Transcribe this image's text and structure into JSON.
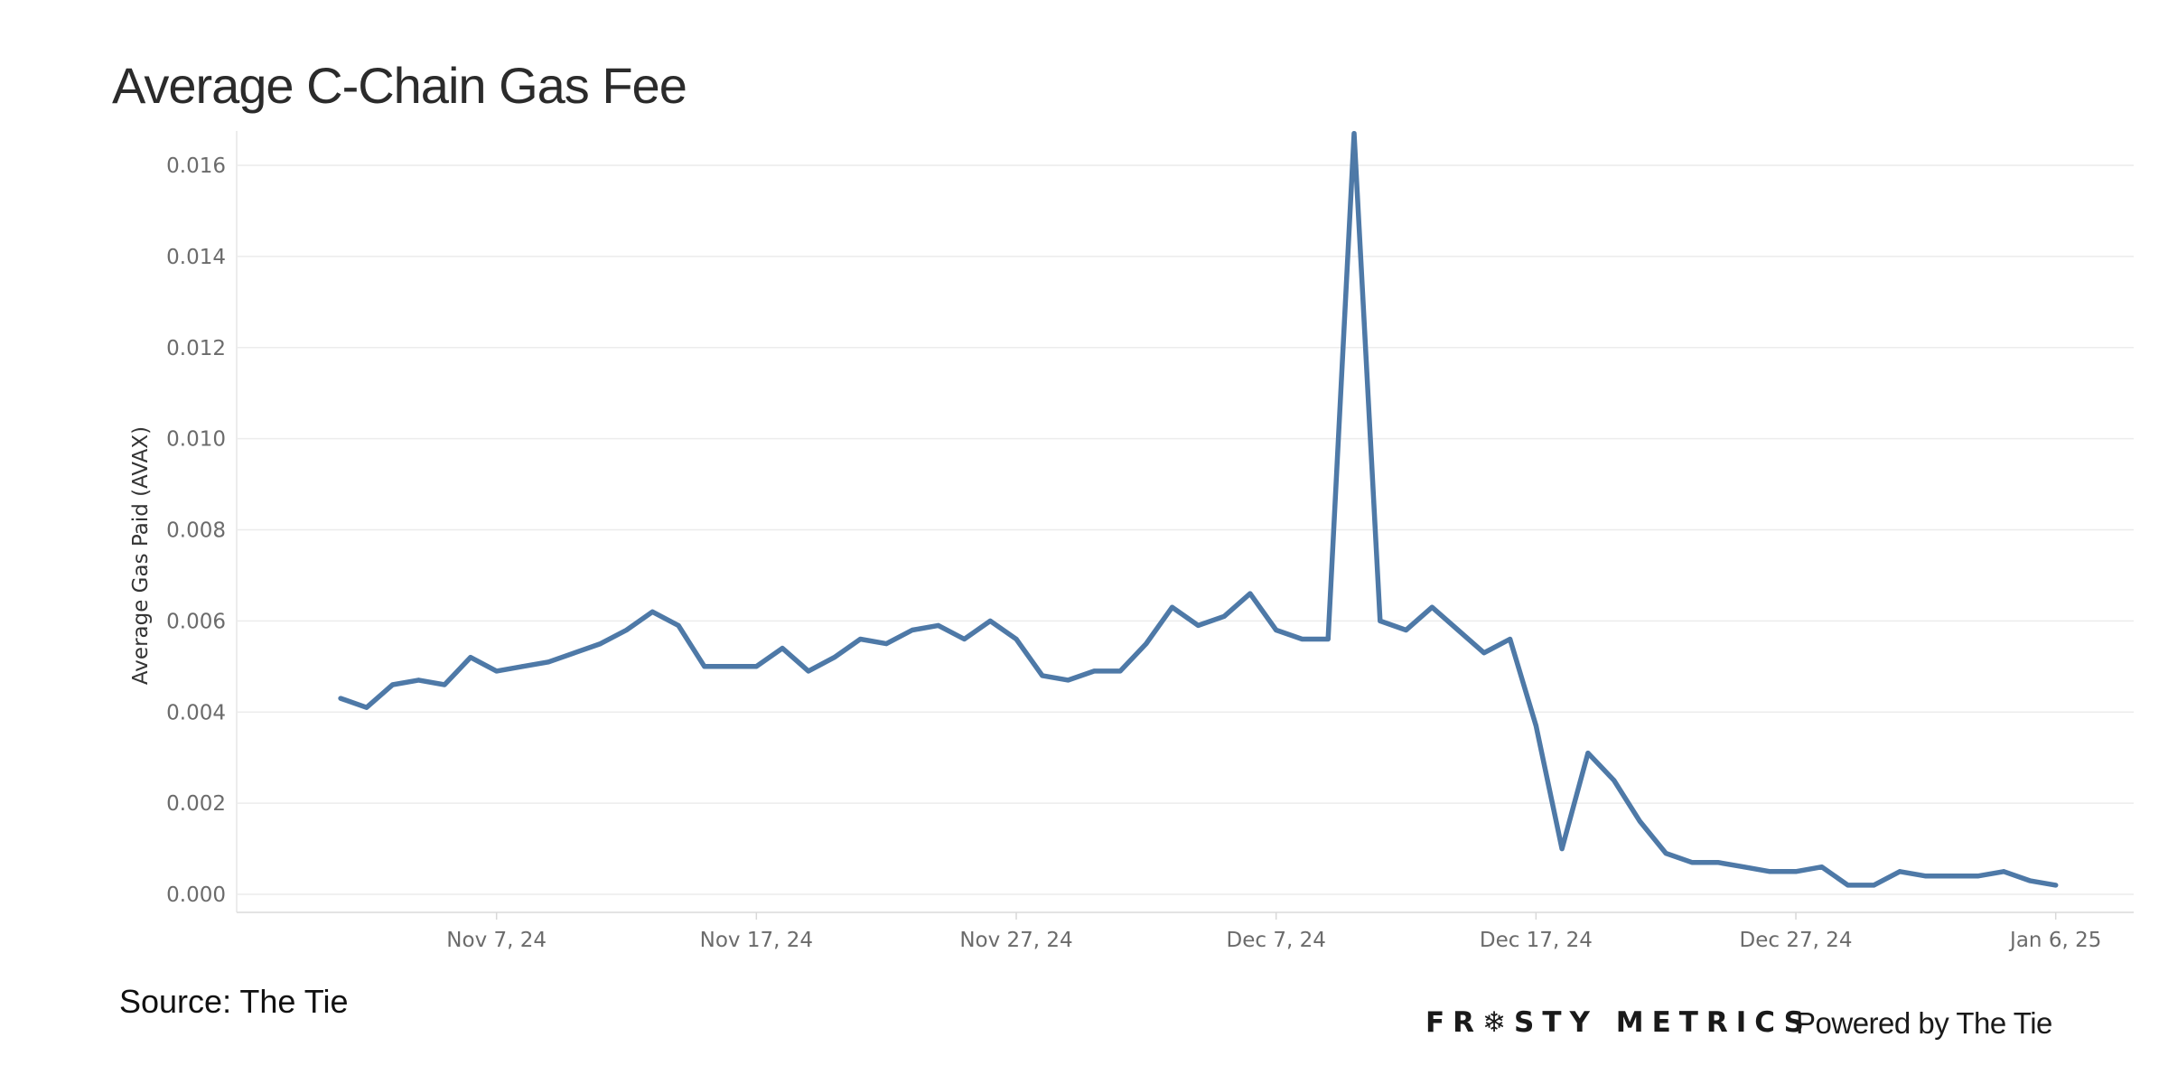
{
  "title": "Average C-Chain Gas Fee",
  "source": "Source: The Tie",
  "brand": "FR❄STY METRICS",
  "powered": "Powered by The Tie",
  "colors": {
    "line": "#4e79a7",
    "grid": "#ececec",
    "tick": "#6b6b6b"
  },
  "chart_data": {
    "type": "line",
    "title": "Average C-Chain Gas Fee",
    "xlabel": "",
    "ylabel": "Average Gas Paid (AVAX)",
    "ylim": [
      0,
      0.017
    ],
    "yticks": [
      0.0,
      0.002,
      0.004,
      0.006,
      0.008,
      0.01,
      0.012,
      0.014,
      0.016
    ],
    "ytick_labels": [
      "0.000",
      "0.002",
      "0.004",
      "0.006",
      "0.008",
      "0.010",
      "0.012",
      "0.014",
      "0.016"
    ],
    "xlim": [
      "2024-10-28",
      "2025-01-09"
    ],
    "xticks": [
      "2024-11-07",
      "2024-11-17",
      "2024-11-27",
      "2024-12-07",
      "2024-12-17",
      "2024-12-27",
      "2025-01-06"
    ],
    "xtick_labels": [
      "Nov 7, 24",
      "Nov 17, 24",
      "Nov 27, 24",
      "Dec 7, 24",
      "Dec 17, 24",
      "Dec 27, 24",
      "Jan 6, 25"
    ],
    "grid": true,
    "legend": "none",
    "series": [
      {
        "x": [
          "2024-11-01",
          "2024-11-02",
          "2024-11-03",
          "2024-11-04",
          "2024-11-05",
          "2024-11-06",
          "2024-11-07",
          "2024-11-08",
          "2024-11-09",
          "2024-11-10",
          "2024-11-11",
          "2024-11-12",
          "2024-11-13",
          "2024-11-14",
          "2024-11-15",
          "2024-11-16",
          "2024-11-17",
          "2024-11-18",
          "2024-11-19",
          "2024-11-20",
          "2024-11-21",
          "2024-11-22",
          "2024-11-23",
          "2024-11-24",
          "2024-11-25",
          "2024-11-26",
          "2024-11-27",
          "2024-11-28",
          "2024-11-29",
          "2024-11-30",
          "2024-12-01",
          "2024-12-02",
          "2024-12-03",
          "2024-12-04",
          "2024-12-05",
          "2024-12-06",
          "2024-12-07",
          "2024-12-08",
          "2024-12-09",
          "2024-12-10",
          "2024-12-11",
          "2024-12-12",
          "2024-12-13",
          "2024-12-14",
          "2024-12-15",
          "2024-12-16",
          "2024-12-17",
          "2024-12-18",
          "2024-12-19",
          "2024-12-20",
          "2024-12-21",
          "2024-12-22",
          "2024-12-23",
          "2024-12-24",
          "2024-12-25",
          "2024-12-26",
          "2024-12-27",
          "2024-12-28",
          "2024-12-29",
          "2024-12-30",
          "2024-12-31",
          "2025-01-01",
          "2025-01-02",
          "2025-01-03",
          "2025-01-04",
          "2025-01-05",
          "2025-01-06"
        ],
        "values": [
          0.0043,
          0.0041,
          0.0046,
          0.0047,
          0.0046,
          0.0052,
          0.0049,
          0.005,
          0.0051,
          0.0053,
          0.0055,
          0.0058,
          0.0062,
          0.0059,
          0.005,
          0.005,
          0.005,
          0.0054,
          0.0049,
          0.0052,
          0.0056,
          0.0055,
          0.0058,
          0.0059,
          0.0056,
          0.006,
          0.0056,
          0.0048,
          0.0047,
          0.0049,
          0.0049,
          0.0055,
          0.0063,
          0.0059,
          0.0061,
          0.0066,
          0.0058,
          0.0056,
          0.0056,
          0.0167,
          0.006,
          0.0058,
          0.0063,
          0.0058,
          0.0053,
          0.0056,
          0.0037,
          0.001,
          0.0031,
          0.0025,
          0.0016,
          0.0009,
          0.0007,
          0.0007,
          0.0006,
          0.0005,
          0.0005,
          0.0006,
          0.0002,
          0.0002,
          0.0005,
          0.0004,
          0.0004,
          0.0004,
          0.0005,
          0.0003,
          0.0002
        ]
      }
    ]
  }
}
